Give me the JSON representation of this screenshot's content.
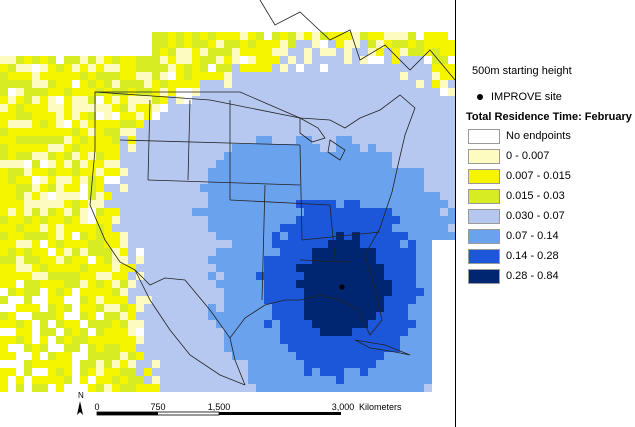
{
  "legend": {
    "height_label": "500m starting height",
    "site_label": "IMPROVE site",
    "title": "Total Residence Time: February",
    "bins": [
      {
        "label": "No endpoints",
        "color": "#ffffff"
      },
      {
        "label": "0 - 0.007",
        "color": "#fdfbbf"
      },
      {
        "label": "0.007 - 0.015",
        "color": "#f5f500"
      },
      {
        "label": "0.015 - 0.03",
        "color": "#d7ec23"
      },
      {
        "label": "0.030 - 0.07",
        "color": "#b7c8f0"
      },
      {
        "label": "0.07 - 0.14",
        "color": "#6aa2ee"
      },
      {
        "label": "0.14 - 0.28",
        "color": "#1c57d9"
      },
      {
        "label": "0.28 - 0.84",
        "color": "#002671"
      }
    ]
  },
  "scale_bar": {
    "north": "N",
    "ticks": [
      "0",
      "750",
      "1,500",
      "3,000"
    ],
    "unit": "Kilometers"
  }
}
